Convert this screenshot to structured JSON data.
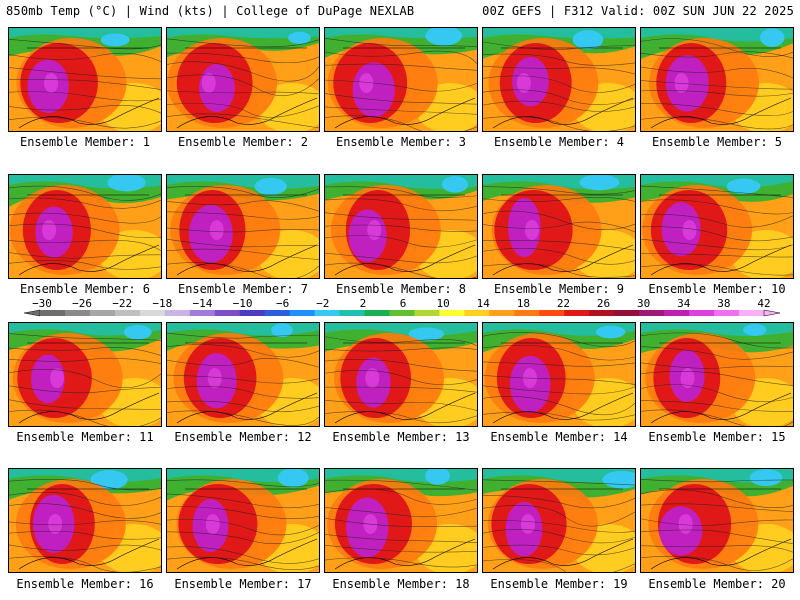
{
  "header": {
    "title_left": "850mb Temp (°C) | Wind (kts) | College of DuPage NEXLAB",
    "title_right": "00Z GEFS | F312 Valid: 00Z SUN JUN 22 2025"
  },
  "panels": [
    {
      "label": "Ensemble Member: 1"
    },
    {
      "label": "Ensemble Member: 2"
    },
    {
      "label": "Ensemble Member: 3"
    },
    {
      "label": "Ensemble Member: 4"
    },
    {
      "label": "Ensemble Member: 5"
    },
    {
      "label": "Ensemble Member: 6"
    },
    {
      "label": "Ensemble Member: 7"
    },
    {
      "label": "Ensemble Member: 8"
    },
    {
      "label": "Ensemble Member: 9"
    },
    {
      "label": "Ensemble Member: 10"
    },
    {
      "label": "Ensemble Member: 11"
    },
    {
      "label": "Ensemble Member: 12"
    },
    {
      "label": "Ensemble Member: 13"
    },
    {
      "label": "Ensemble Member: 14"
    },
    {
      "label": "Ensemble Member: 15"
    },
    {
      "label": "Ensemble Member: 16"
    },
    {
      "label": "Ensemble Member: 17"
    },
    {
      "label": "Ensemble Member: 18"
    },
    {
      "label": "Ensemble Member: 19"
    },
    {
      "label": "Ensemble Member: 20"
    }
  ],
  "colorbar": {
    "ticks": [
      "−30",
      "−26",
      "−22",
      "−18",
      "−14",
      "−10",
      "−6",
      "−2",
      "2",
      "6",
      "10",
      "14",
      "18",
      "22",
      "26",
      "30",
      "34",
      "38",
      "42"
    ],
    "colors": [
      "#6e6e6e",
      "#8a8a8a",
      "#a6a6a6",
      "#bfbfbf",
      "#d9d9d9",
      "#c8b4e6",
      "#a27ad8",
      "#7e4ec8",
      "#4a3cc4",
      "#2e5ee0",
      "#1e90ff",
      "#35c8f0",
      "#20c0b0",
      "#18b050",
      "#60c030",
      "#b0d830",
      "#ffff30",
      "#ffd020",
      "#ffa018",
      "#ff7a10",
      "#ff4a10",
      "#e01818",
      "#b01020",
      "#901038",
      "#a01878",
      "#c020b0",
      "#e040e0",
      "#f070f0",
      "#f8b0f8"
    ]
  },
  "map_colors": {
    "core": "#c020c0",
    "hot": "#e01818",
    "warm": "#ff7a10",
    "mild": "#ffa018",
    "cool": "#ffd020",
    "green": "#40b030",
    "teal": "#20c0b0",
    "cold": "#35c8f0",
    "blue": "#2e5ee0"
  }
}
